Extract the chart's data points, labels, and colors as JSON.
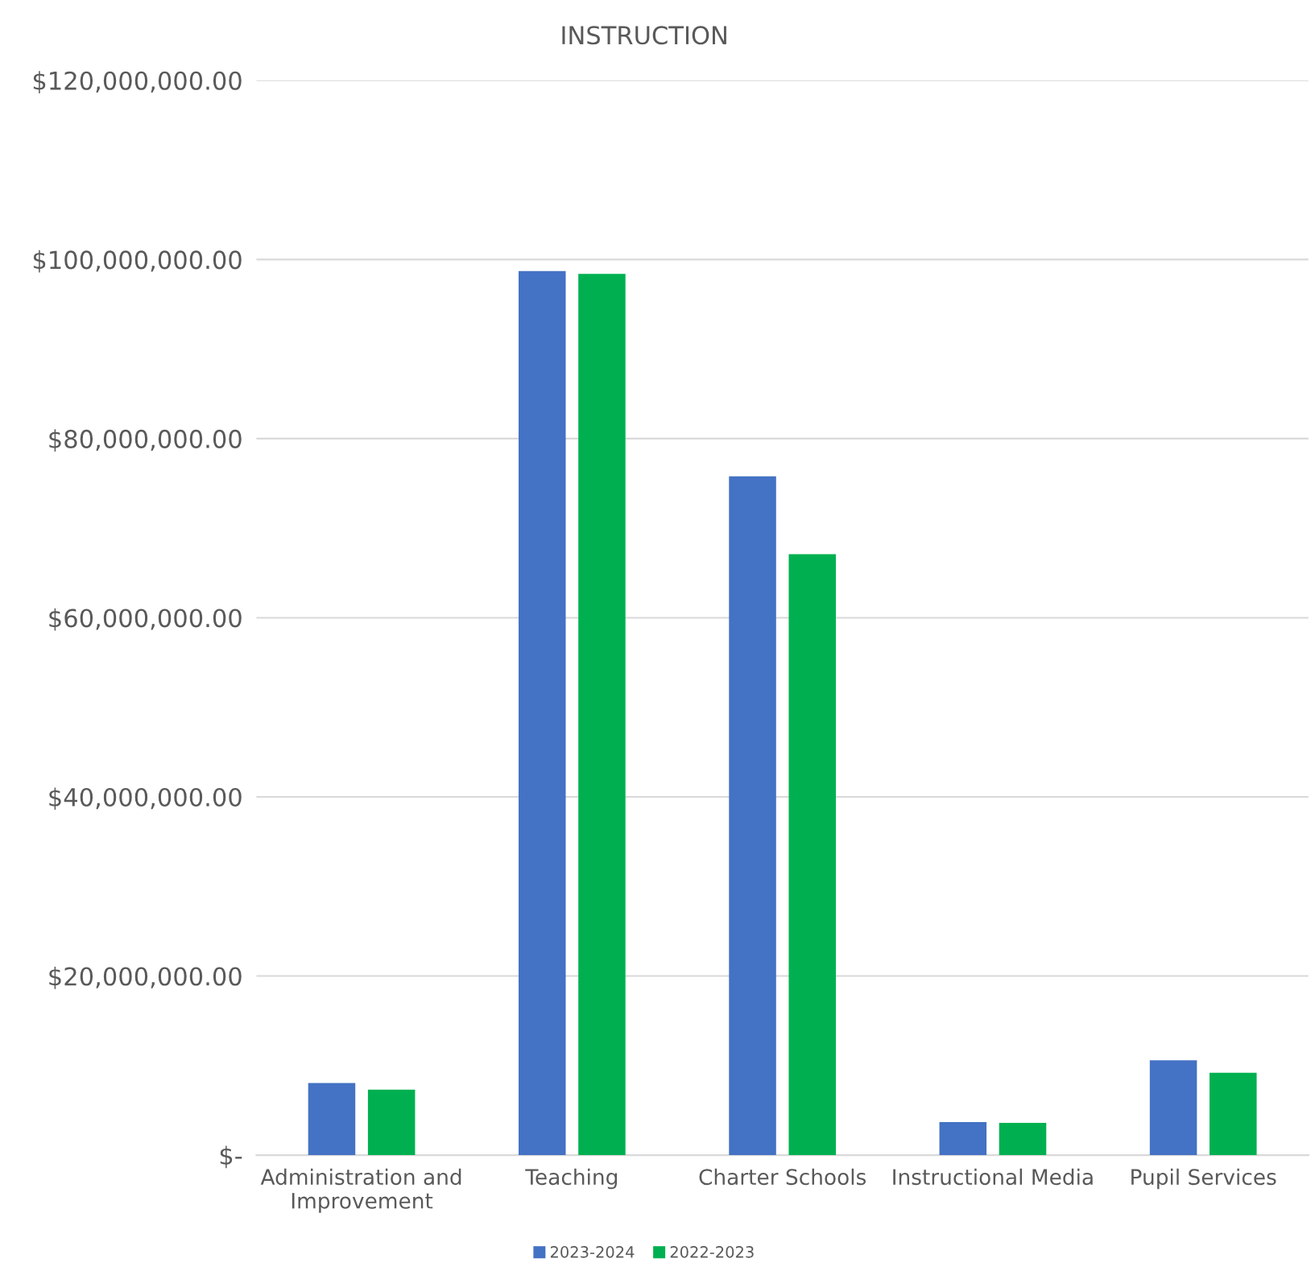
{
  "chart_data": {
    "type": "bar",
    "title": "INSTRUCTION",
    "categories": [
      "Administration and\nImprovement",
      "Teaching",
      "Charter Schools",
      "Instructional Media",
      "Pupil Services"
    ],
    "series": [
      {
        "name": "2023-2024",
        "color": "#4472c4",
        "values": [
          8050000,
          98700000,
          75800000,
          3700000,
          10600000
        ]
      },
      {
        "name": "2022-2023",
        "color": "#00b050",
        "values": [
          7300000,
          98400000,
          67100000,
          3600000,
          9200000
        ]
      }
    ],
    "ylim": [
      0,
      120000000
    ],
    "yticks": [
      {
        "value": 0,
        "label": "$-"
      },
      {
        "value": 20000000,
        "label": "$20,000,000.00"
      },
      {
        "value": 40000000,
        "label": "$40,000,000.00"
      },
      {
        "value": 60000000,
        "label": "$60,000,000.00"
      },
      {
        "value": 80000000,
        "label": "$80,000,000.00"
      },
      {
        "value": 100000000,
        "label": "$100,000,000.00"
      },
      {
        "value": 120000000,
        "label": "$120,000,000.00"
      }
    ],
    "grid": "y",
    "legend": "bottom"
  }
}
